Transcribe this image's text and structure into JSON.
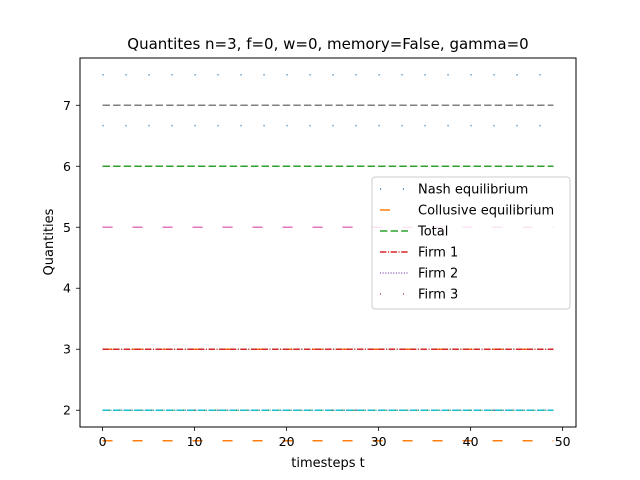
{
  "chart_data": {
    "type": "line",
    "title": "Quantites n=3, f=0, w=0, memory=False, gamma=0",
    "xlabel": "timesteps t",
    "ylabel": "Quantities",
    "xlim": [
      -2.45,
      51.45
    ],
    "ylim": [
      1.725,
      7.775
    ],
    "x_ticks": [
      0,
      10,
      20,
      30,
      40,
      50
    ],
    "y_ticks": [
      2,
      3,
      4,
      5,
      6,
      7
    ],
    "grid": false,
    "legend_position": "center-right",
    "x_range": [
      0,
      49
    ],
    "series": [
      {
        "name": "Nash equilibrium",
        "group": "Nash equilibrium",
        "value": 2,
        "color": "#1f77b4",
        "dash": "dotted-sparse",
        "in_legend": true
      },
      {
        "name": "Nash equilibrium",
        "group": "Nash equilibrium",
        "value": 6.6667,
        "color": "#1f77b4",
        "dash": "dotted-sparse",
        "in_legend": false
      },
      {
        "name": "Collusive equilibrium",
        "group": "Collusive equilibrium",
        "value": 1.5,
        "color": "#ff7f0e",
        "dash": "loose-dash",
        "in_legend": true
      },
      {
        "name": "Collusive equilibrium",
        "group": "Collusive equilibrium",
        "value": 5,
        "color": "#ff7f0e",
        "dash": "loose-dash",
        "in_legend": false
      },
      {
        "name": "Total",
        "group": "Total",
        "value": 6,
        "color": "#2ca02c",
        "dash": "dashed",
        "in_legend": true
      },
      {
        "name": "Firm 1",
        "group": "Firm 1",
        "value": 2,
        "color": "#d62728",
        "dash": "dashdot",
        "in_legend": true
      },
      {
        "name": "Firm 2",
        "group": "Firm 2",
        "value": 2,
        "color": "#9467bd",
        "dash": "dotted",
        "in_legend": true
      },
      {
        "name": "Firm 3",
        "group": "Firm 3",
        "value": 2,
        "color": "#8c564b",
        "dash": "dotted-sparse",
        "in_legend": true
      },
      {
        "name": "",
        "group": "",
        "value": 5,
        "color": "#e377c2",
        "dash": "loose-dash",
        "in_legend": false
      },
      {
        "name": "",
        "group": "",
        "value": 7,
        "color": "#7f7f7f",
        "dash": "dashed",
        "in_legend": false
      },
      {
        "name": "",
        "group": "",
        "value": 3,
        "color": "#bcbd22",
        "dash": "dashdot",
        "in_legend": false
      },
      {
        "name": "",
        "group": "",
        "value": 3,
        "color": "#17becf",
        "dash": "dotted",
        "in_legend": false
      },
      {
        "name": "",
        "group": "",
        "value": 7.5,
        "color": "#1f77b4",
        "dash": "dotted-sparse",
        "in_legend": false
      },
      {
        "name": "",
        "group": "",
        "value": 3,
        "color": "#ff7f0e",
        "dash": "loose-dash",
        "in_legend": false
      },
      {
        "name": "",
        "group": "",
        "value": 2,
        "color": "#2ca02c",
        "dash": "dashed",
        "in_legend": false
      },
      {
        "name": "",
        "group": "",
        "value": 3,
        "color": "#d62728",
        "dash": "dashdot",
        "in_legend": false
      },
      {
        "name": "",
        "group": "",
        "value": 2,
        "color": "#9467bd",
        "dash": "dotted",
        "in_legend": false
      },
      {
        "name": "",
        "group": "",
        "value": 2,
        "color": "#17becf",
        "dash": "dashdot",
        "in_legend": false
      }
    ]
  }
}
